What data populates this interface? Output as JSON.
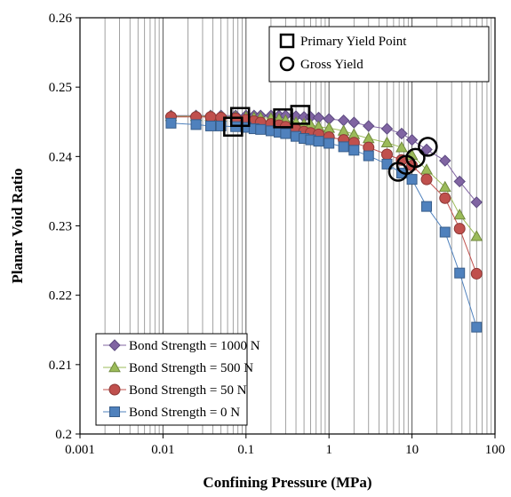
{
  "chart_data": {
    "type": "scatter",
    "xlabel": "Confining Pressure (MPa)",
    "ylabel": "Planar Void Ratio",
    "x_scale": "log",
    "xlim": [
      0.001,
      100
    ],
    "ylim": [
      0.2,
      0.26
    ],
    "x_ticks": [
      "0.001",
      "0.01",
      "0.1",
      "1",
      "10",
      "100"
    ],
    "y_ticks": [
      "0.2",
      "0.21",
      "0.22",
      "0.23",
      "0.24",
      "0.25",
      "0.26"
    ],
    "grid": "vertical log gridlines",
    "x": [
      0.0125,
      0.025,
      0.0375,
      0.05,
      0.075,
      0.1,
      0.125,
      0.15,
      0.2,
      0.25,
      0.3,
      0.4,
      0.5,
      0.6,
      0.75,
      1,
      1.5,
      2,
      3,
      5,
      7.5,
      10,
      15,
      25,
      37.5,
      60
    ],
    "series": [
      {
        "name": "Bond Strength = 1000 N",
        "marker": "diamond",
        "color": "#8064a2",
        "edge": "#5c4a80",
        "values": [
          0.2459,
          0.2459,
          0.2459,
          0.2459,
          0.2459,
          0.2459,
          0.2459,
          0.2459,
          0.2459,
          0.2459,
          0.2459,
          0.2458,
          0.2457,
          0.2457,
          0.2456,
          0.2454,
          0.2452,
          0.2449,
          0.2444,
          0.244,
          0.2433,
          0.2424,
          0.241,
          0.2394,
          0.2364,
          0.2334
        ]
      },
      {
        "name": "Bond Strength = 500 N",
        "marker": "triangle",
        "color": "#9bbb59",
        "edge": "#71893f",
        "values": [
          0.2458,
          0.2458,
          0.2458,
          0.2457,
          0.2457,
          0.2457,
          0.2456,
          0.2456,
          0.2455,
          0.2454,
          0.2452,
          0.2449,
          0.2447,
          0.2446,
          0.2443,
          0.2441,
          0.2437,
          0.2432,
          0.2426,
          0.242,
          0.2413,
          0.2402,
          0.2381,
          0.2356,
          0.2316,
          0.2285
        ]
      },
      {
        "name": "Bond Strength = 50 N",
        "marker": "circle",
        "color": "#c0504d",
        "edge": "#8c3836",
        "values": [
          0.2457,
          0.2457,
          0.2457,
          0.2456,
          0.2455,
          0.2453,
          0.2451,
          0.2449,
          0.2447,
          0.2445,
          0.2443,
          0.2439,
          0.2436,
          0.2434,
          0.2432,
          0.2428,
          0.2424,
          0.242,
          0.2413,
          0.2403,
          0.2395,
          0.2387,
          0.2367,
          0.234,
          0.2296,
          0.2231
        ]
      },
      {
        "name": "Bond Strength = 0 N",
        "marker": "square",
        "color": "#4f81bd",
        "edge": "#385d8a",
        "values": [
          0.2448,
          0.2446,
          0.2444,
          0.2444,
          0.2443,
          0.2442,
          0.244,
          0.2439,
          0.2437,
          0.2435,
          0.2433,
          0.2429,
          0.2426,
          0.2424,
          0.2422,
          0.2419,
          0.2414,
          0.2409,
          0.2401,
          0.2389,
          0.2376,
          0.2367,
          0.2328,
          0.2291,
          0.2232,
          0.2154
        ]
      }
    ],
    "annotations": [
      {
        "name": "Primary Yield Point",
        "marker": "open-square",
        "points": [
          [
            0.07,
            0.2443
          ],
          [
            0.085,
            0.2457
          ],
          [
            0.28,
            0.2455
          ],
          [
            0.45,
            0.246
          ]
        ]
      },
      {
        "name": "Gross Yield",
        "marker": "open-circle",
        "points": [
          [
            6.8,
            0.2378
          ],
          [
            8.5,
            0.2388
          ],
          [
            11,
            0.2398
          ],
          [
            15.5,
            0.2414
          ]
        ]
      }
    ],
    "legend_annotations_position": "top-right",
    "legend_series_position": "bottom-left"
  }
}
